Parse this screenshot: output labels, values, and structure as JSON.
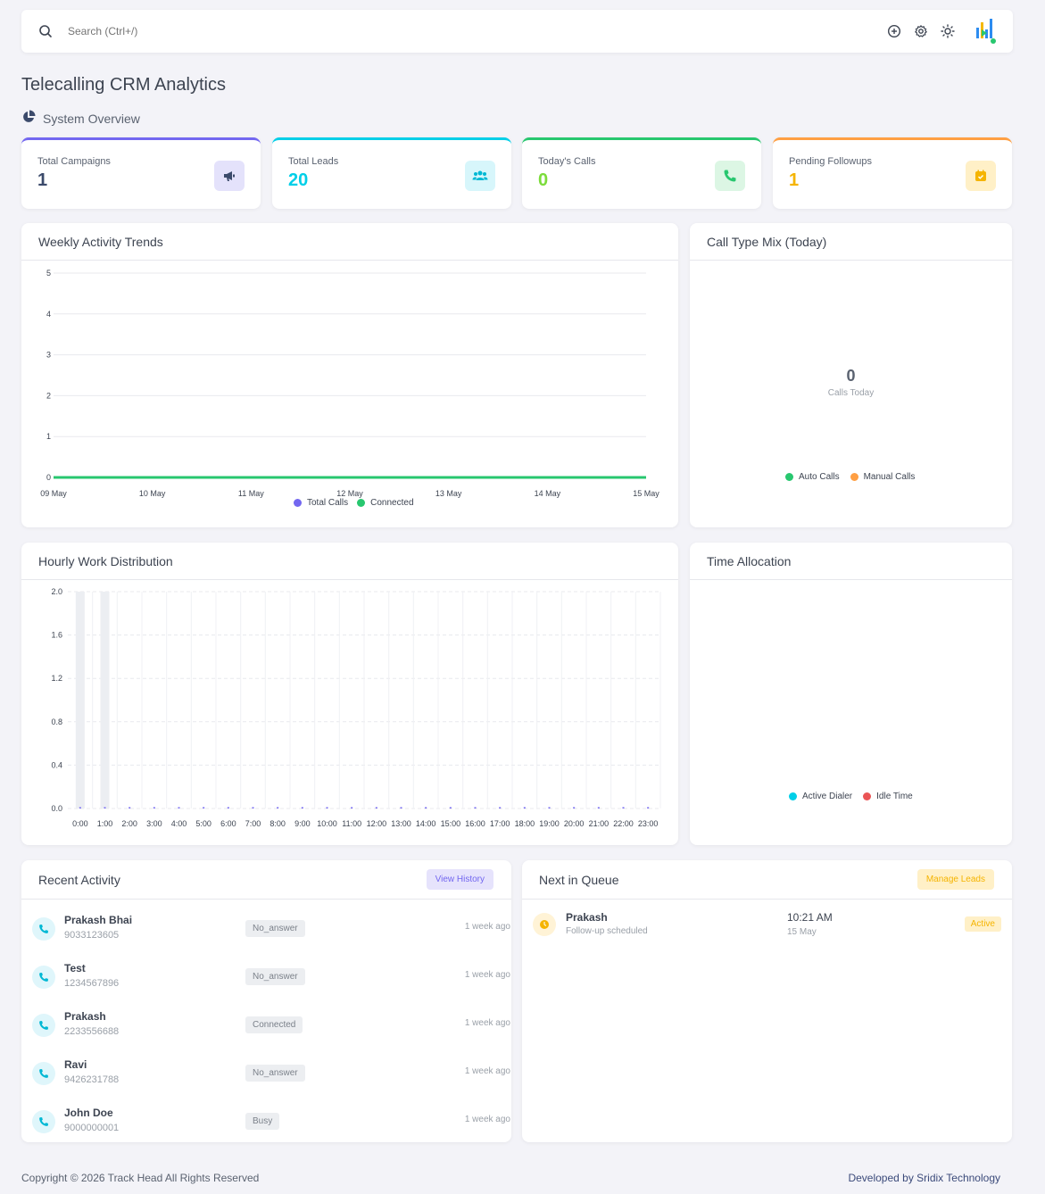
{
  "topbar": {
    "search_placeholder": "Search (Ctrl+/)"
  },
  "page_title": "Telecalling CRM Analytics",
  "section_title": "System Overview",
  "stats": [
    {
      "label": "Total Campaigns",
      "value": "1",
      "color": "#7367f0"
    },
    {
      "label": "Total Leads",
      "value": "20",
      "color": "#00cfe8"
    },
    {
      "label": "Today's Calls",
      "value": "0",
      "color": "#28c76f"
    },
    {
      "label": "Pending Followups",
      "value": "1",
      "color": "#ff9f43"
    }
  ],
  "weekly": {
    "title": "Weekly Activity Trends",
    "legend": [
      "Total Calls",
      "Connected"
    ]
  },
  "calltype": {
    "title": "Call Type Mix (Today)",
    "center_value": "0",
    "center_label": "Calls Today",
    "legend": [
      "Auto Calls",
      "Manual Calls"
    ]
  },
  "hourly": {
    "title": "Hourly Work Distribution"
  },
  "time_alloc": {
    "title": "Time Allocation",
    "legend": [
      "Active Dialer",
      "Idle Time"
    ]
  },
  "recent": {
    "title": "Recent Activity",
    "button": "View History",
    "items": [
      {
        "name": "Prakash Bhai",
        "phone": "9033123605",
        "status": "No_answer",
        "time": "1 week ago"
      },
      {
        "name": "Test",
        "phone": "1234567896",
        "status": "No_answer",
        "time": "1 week ago"
      },
      {
        "name": "Prakash",
        "phone": "2233556688",
        "status": "Connected",
        "time": "1 week ago"
      },
      {
        "name": "Ravi",
        "phone": "9426231788",
        "status": "No_answer",
        "time": "1 week ago"
      },
      {
        "name": "John Doe",
        "phone": "9000000001",
        "status": "Busy",
        "time": "1 week ago"
      }
    ]
  },
  "queue": {
    "title": "Next in Queue",
    "button": "Manage Leads",
    "item": {
      "name": "Prakash",
      "sub": "Follow-up scheduled",
      "time": "10:21 AM",
      "date": "15 May",
      "badge": "Active"
    }
  },
  "footer": {
    "left": "Copyright © 2026 Track Head All Rights Reserved",
    "right": "Developed by Sridix Technology"
  },
  "chart_data": [
    {
      "type": "line",
      "x": [
        "09 May",
        "10 May",
        "11 May",
        "12 May",
        "13 May",
        "14 May",
        "15 May"
      ],
      "series": [
        {
          "name": "Total Calls",
          "values": [
            0,
            0,
            0,
            0,
            0,
            0,
            0
          ],
          "color": "#7367f0"
        },
        {
          "name": "Connected",
          "values": [
            0,
            0,
            0,
            0,
            0,
            0,
            0
          ],
          "color": "#28c76f"
        }
      ],
      "ylim": [
        0,
        5
      ],
      "yticks": [
        "0",
        "1",
        "2",
        "3",
        "4",
        "5"
      ]
    },
    {
      "type": "bar",
      "categories": [
        "0:00",
        "1:00",
        "2:00",
        "3:00",
        "4:00",
        "5:00",
        "6:00",
        "7:00",
        "8:00",
        "9:00",
        "10:00",
        "11:00",
        "12:00",
        "13:00",
        "14:00",
        "15:00",
        "16:00",
        "17:00",
        "18:00",
        "19:00",
        "20:00",
        "21:00",
        "22:00",
        "23:00"
      ],
      "values": [
        0,
        0,
        0,
        0,
        0,
        0,
        0,
        0,
        0,
        0,
        0,
        0,
        0,
        0,
        0,
        0,
        0,
        0,
        0,
        0,
        0,
        0,
        0,
        0
      ],
      "highlight_values": [
        2.0,
        2.0,
        0,
        0,
        0,
        0,
        0,
        0,
        0,
        0,
        0,
        0,
        0,
        0,
        0,
        0,
        0,
        0,
        0,
        0,
        0,
        0,
        0,
        0
      ],
      "ylim": [
        0,
        2.0
      ],
      "yticks": [
        "0.0",
        "0.4",
        "0.8",
        "1.2",
        "1.6",
        "2.0"
      ]
    }
  ]
}
